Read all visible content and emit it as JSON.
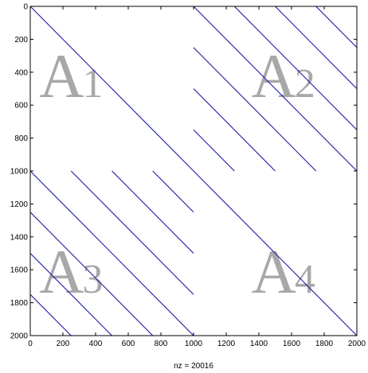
{
  "chart_data": {
    "type": "scatter",
    "subtype": "sparsity-pattern",
    "title": "",
    "xlabel": "nz = 20016",
    "ylabel": "",
    "xlim": [
      0,
      2000
    ],
    "ylim": [
      0,
      2000
    ],
    "y_reversed": true,
    "grid": false,
    "legend": "none",
    "marker_color": "#1a1aa8",
    "x_ticks": [
      0,
      200,
      400,
      600,
      800,
      1000,
      1200,
      1400,
      1600,
      1800,
      2000
    ],
    "y_ticks": [
      0,
      200,
      400,
      600,
      800,
      1000,
      1200,
      1400,
      1600,
      1800,
      2000
    ],
    "diagonals": [
      {
        "block": "A1",
        "x": [
          0,
          1000
        ],
        "y": [
          0,
          1000
        ]
      },
      {
        "block": "A2",
        "x": [
          1000,
          2000
        ],
        "y": [
          0,
          1000
        ]
      },
      {
        "block": "A2",
        "x": [
          1250,
          2000
        ],
        "y": [
          0,
          750
        ]
      },
      {
        "block": "A2",
        "x": [
          1500,
          2000
        ],
        "y": [
          0,
          500
        ]
      },
      {
        "block": "A2",
        "x": [
          1750,
          2000
        ],
        "y": [
          0,
          250
        ]
      },
      {
        "block": "A2",
        "x": [
          1000,
          1750
        ],
        "y": [
          250,
          1000
        ]
      },
      {
        "block": "A2",
        "x": [
          1000,
          1500
        ],
        "y": [
          500,
          1000
        ]
      },
      {
        "block": "A2",
        "x": [
          1000,
          1250
        ],
        "y": [
          750,
          1000
        ]
      },
      {
        "block": "A3",
        "x": [
          0,
          1000
        ],
        "y": [
          1000,
          2000
        ]
      },
      {
        "block": "A3",
        "x": [
          0,
          750
        ],
        "y": [
          1250,
          2000
        ]
      },
      {
        "block": "A3",
        "x": [
          0,
          500
        ],
        "y": [
          1500,
          2000
        ]
      },
      {
        "block": "A3",
        "x": [
          0,
          250
        ],
        "y": [
          1750,
          2000
        ]
      },
      {
        "block": "A3",
        "x": [
          250,
          1000
        ],
        "y": [
          1000,
          1750
        ]
      },
      {
        "block": "A3",
        "x": [
          500,
          1000
        ],
        "y": [
          1000,
          1500
        ]
      },
      {
        "block": "A3",
        "x": [
          750,
          1000
        ],
        "y": [
          1000,
          1250
        ]
      },
      {
        "block": "A4",
        "x": [
          1000,
          2000
        ],
        "y": [
          1000,
          2000
        ]
      }
    ],
    "annotations": [
      {
        "letter": "A",
        "sub": "1",
        "x": 250,
        "y": 550
      },
      {
        "letter": "A",
        "sub": "2",
        "x": 1550,
        "y": 550
      },
      {
        "letter": "A",
        "sub": "3",
        "x": 250,
        "y": 1740
      },
      {
        "letter": "A",
        "sub": "4",
        "x": 1550,
        "y": 1740
      }
    ]
  }
}
